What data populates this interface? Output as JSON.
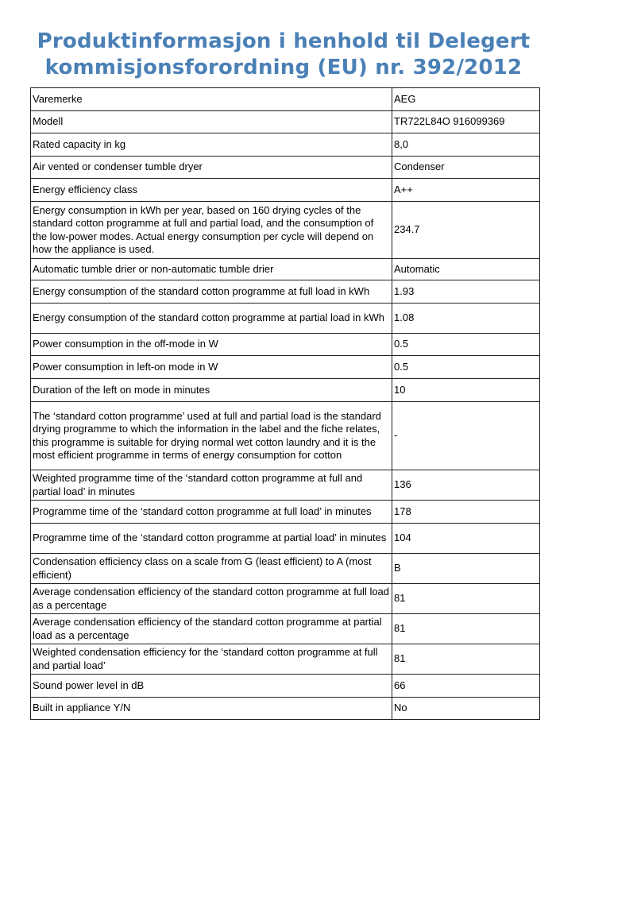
{
  "title": {
    "line1": "Produktinformasjon i henhold til Delegert",
    "line2": "kommisjonsforordning (EU) nr. 392/2012"
  },
  "title_color": "#4a80b6",
  "rows": [
    {
      "label": "Varemerke",
      "value": "AEG"
    },
    {
      "label": "Modell",
      "value": "TR722L84O 916099369"
    },
    {
      "label": "Rated capacity in kg",
      "value": "8,0"
    },
    {
      "label": "Air vented or condenser tumble dryer",
      "value": "Condenser"
    },
    {
      "label": "Energy efficiency class",
      "value": "A++"
    },
    {
      "label": "Energy consumption in kWh per year, based on 160 drying cycles of the standard cotton programme at full and partial load, and the consumption of the low-power modes. Actual energy consumption per cycle will depend on how the appliance is used.",
      "value": "234.7"
    },
    {
      "label": "Automatic tumble drier or non-automatic tumble drier",
      "value": "Automatic"
    },
    {
      "label": "Energy consumption of the standard cotton programme at full load in kWh",
      "value": "1.93"
    },
    {
      "label": "Energy consumption of the standard cotton programme at partial load in kWh",
      "value": "1.08"
    },
    {
      "label": "Power consumption in the off-mode in W",
      "value": "0.5"
    },
    {
      "label": "Power consumption in left-on mode in W",
      "value": "0.5"
    },
    {
      "label": "Duration of the left on mode in minutes",
      "value": "10"
    },
    {
      "label": "The ‘standard cotton programme’ used at full and partial load is the standard drying programme to which the information in the label and the fiche relates, this programme is suitable for drying normal wet cotton laundry and it is the most efficient programme in terms of energy consumption for cotton",
      "value": "-"
    },
    {
      "label": "Weighted programme time of the ‘standard cotton programme at full and partial load’ in minutes",
      "value": "136"
    },
    {
      "label": "Programme time of the ‘standard cotton programme at full load’ in minutes",
      "value": "178"
    },
    {
      "label": "Programme time of the ‘standard cotton programme at partial load’ in minutes",
      "value": "104"
    },
    {
      "label": "Condensation efficiency class on a scale from G (least efficient) to A (most efficient)",
      "value": "B"
    },
    {
      "label": "Average condensation efficiency of the standard cotton programme at full load as a percentage",
      "value": "81"
    },
    {
      "label": "Average condensation efficiency of the standard cotton programme at partial load as a percentage",
      "value": "81"
    },
    {
      "label": "Weighted condensation efficiency for the ‘standard cotton programme at full and partial load’",
      "value": "81"
    },
    {
      "label": "Sound power level in dB",
      "value": "66"
    },
    {
      "label": "Built in appliance Y/N",
      "value": "No"
    }
  ]
}
